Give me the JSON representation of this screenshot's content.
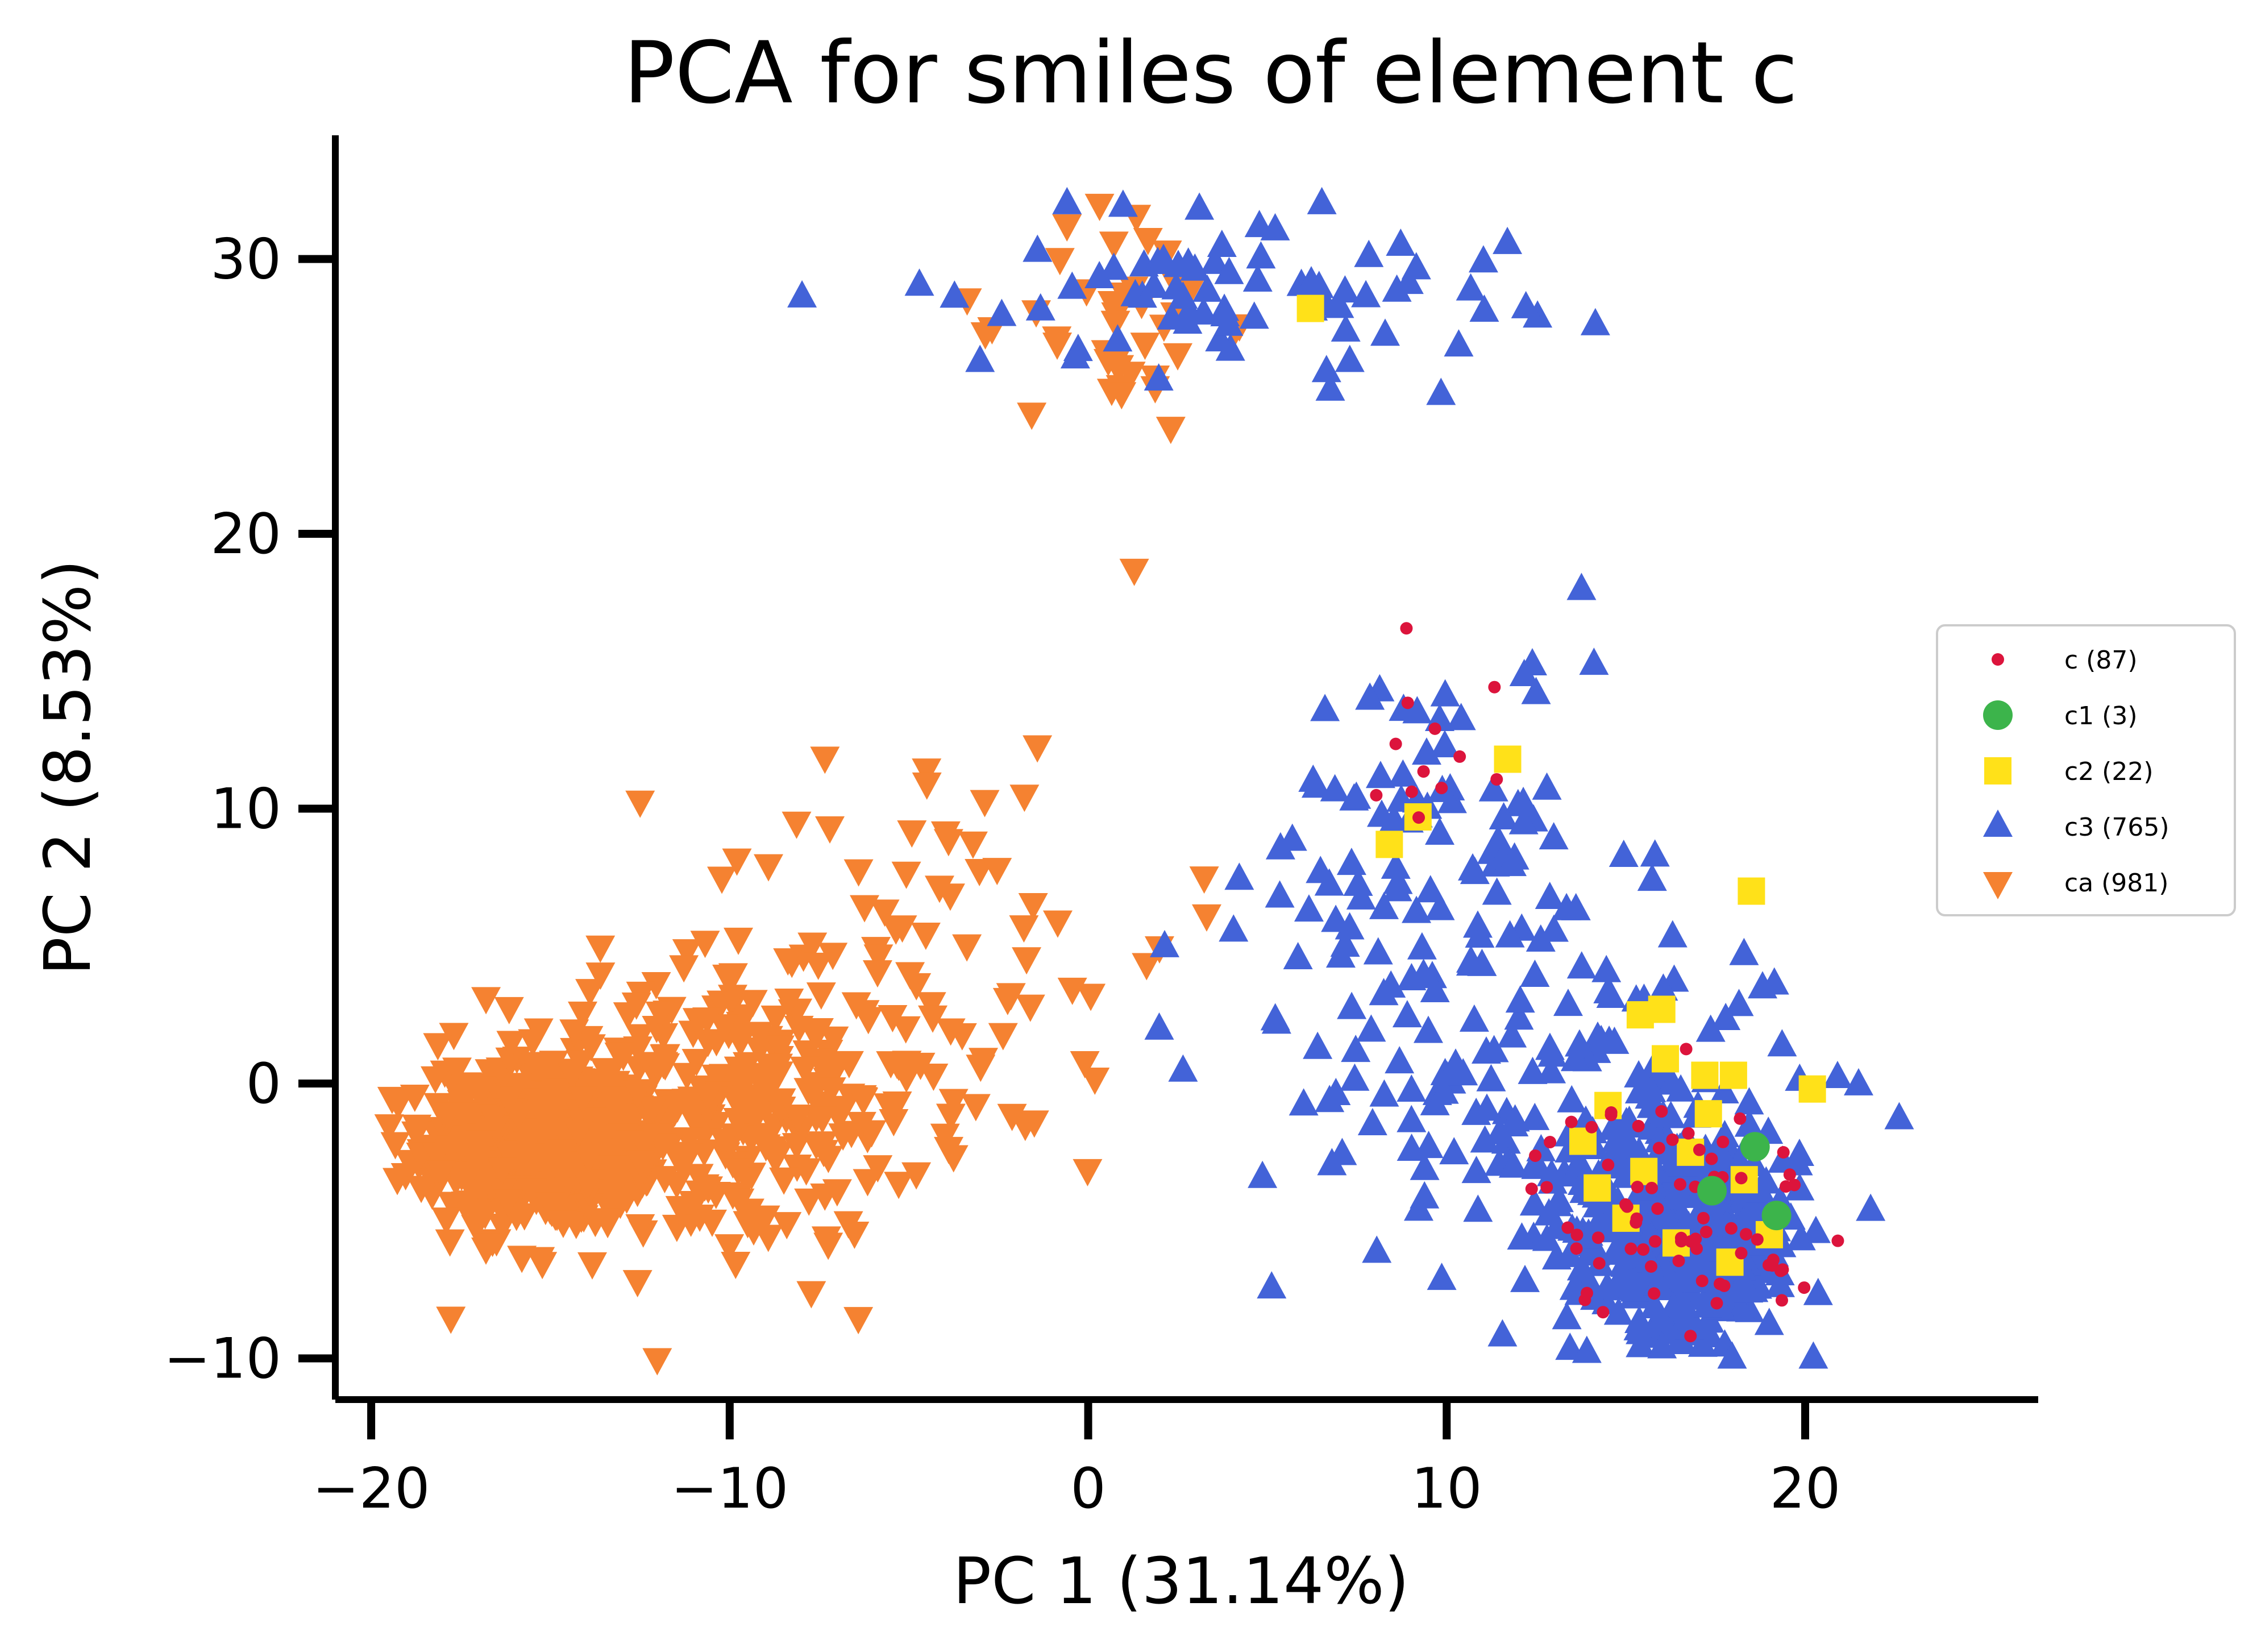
{
  "chart_data": {
    "type": "scatter",
    "title": "PCA for smiles of element c",
    "xlabel": "PC 1 (31.14%)",
    "ylabel": "PC 2 (8.53%)",
    "xlim": [
      -21.0,
      26.5
    ],
    "ylim": [
      -11.5,
      34.5
    ],
    "xticks": [
      -20,
      -10,
      0,
      10,
      20
    ],
    "xtick_labels": [
      "−20",
      "−10",
      "0",
      "10",
      "20"
    ],
    "yticks": [
      -10,
      0,
      10,
      20,
      30
    ],
    "ytick_labels": [
      "−10",
      "0",
      "10",
      "20",
      "30"
    ],
    "grid": false,
    "legend_position": "right",
    "series": [
      {
        "name": "c (87)",
        "marker": "circle-small",
        "color": "#dc143c",
        "clusters": [
          {
            "cx": 16.5,
            "cy": -4.5,
            "sx": 2.0,
            "sy": 2.0,
            "n": 75
          },
          {
            "cx": 9.0,
            "cy": 12.0,
            "sx": 1.5,
            "sy": 3.0,
            "n": 12
          }
        ]
      },
      {
        "name": "c1 (3)",
        "marker": "circle",
        "color": "#3cb44b",
        "points": [
          [
            18.6,
            -2.3
          ],
          [
            17.4,
            -3.9
          ],
          [
            19.2,
            -4.8
          ]
        ]
      },
      {
        "name": "c2 (22)",
        "marker": "square",
        "color": "#ffe119",
        "points": [
          [
            6.2,
            28.2
          ],
          [
            11.7,
            11.8
          ],
          [
            8.4,
            8.7
          ],
          [
            9.2,
            9.7
          ],
          [
            18.5,
            7.0
          ],
          [
            15.4,
            2.5
          ],
          [
            16.0,
            2.7
          ],
          [
            17.2,
            0.3
          ],
          [
            18.0,
            0.3
          ],
          [
            20.2,
            -0.2
          ],
          [
            13.8,
            -2.1
          ],
          [
            15.5,
            -3.2
          ],
          [
            16.4,
            -5.8
          ],
          [
            19.0,
            -5.5
          ],
          [
            17.3,
            -1.1
          ],
          [
            14.5,
            -0.8
          ],
          [
            16.8,
            -2.5
          ],
          [
            18.3,
            -3.5
          ],
          [
            15.0,
            -4.9
          ],
          [
            17.9,
            -6.5
          ],
          [
            16.1,
            0.9
          ],
          [
            14.2,
            -3.8
          ]
        ]
      },
      {
        "name": "c3 (765)",
        "marker": "triangle-up",
        "color": "#4363d8",
        "clusters": [
          {
            "cx": 16.7,
            "cy": -5.4,
            "sx": 1.6,
            "sy": 1.8,
            "n": 430
          },
          {
            "cx": 14.0,
            "cy": -1.0,
            "sx": 3.0,
            "sy": 3.5,
            "n": 140
          },
          {
            "cx": 10.0,
            "cy": 8.0,
            "sx": 2.5,
            "sy": 4.0,
            "n": 95
          },
          {
            "cx": 7.0,
            "cy": 1.5,
            "sx": 3.0,
            "sy": 2.5,
            "n": 25
          },
          {
            "cx": 4.0,
            "cy": 29.0,
            "sx": 4.0,
            "sy": 1.6,
            "n": 75
          }
        ]
      },
      {
        "name": "ca (981)",
        "marker": "triangle-down",
        "color": "#f58231",
        "clusters": [
          {
            "cx": -15.3,
            "cy": -2.2,
            "sx": 1.6,
            "sy": 1.5,
            "n": 560
          },
          {
            "cx": -10.5,
            "cy": -1.0,
            "sx": 3.0,
            "sy": 2.5,
            "n": 300
          },
          {
            "cx": -4.5,
            "cy": 5.0,
            "sx": 3.5,
            "sy": 4.0,
            "n": 80
          },
          {
            "cx": 1.0,
            "cy": 28.0,
            "sx": 1.4,
            "sy": 2.3,
            "n": 41
          }
        ]
      }
    ]
  }
}
